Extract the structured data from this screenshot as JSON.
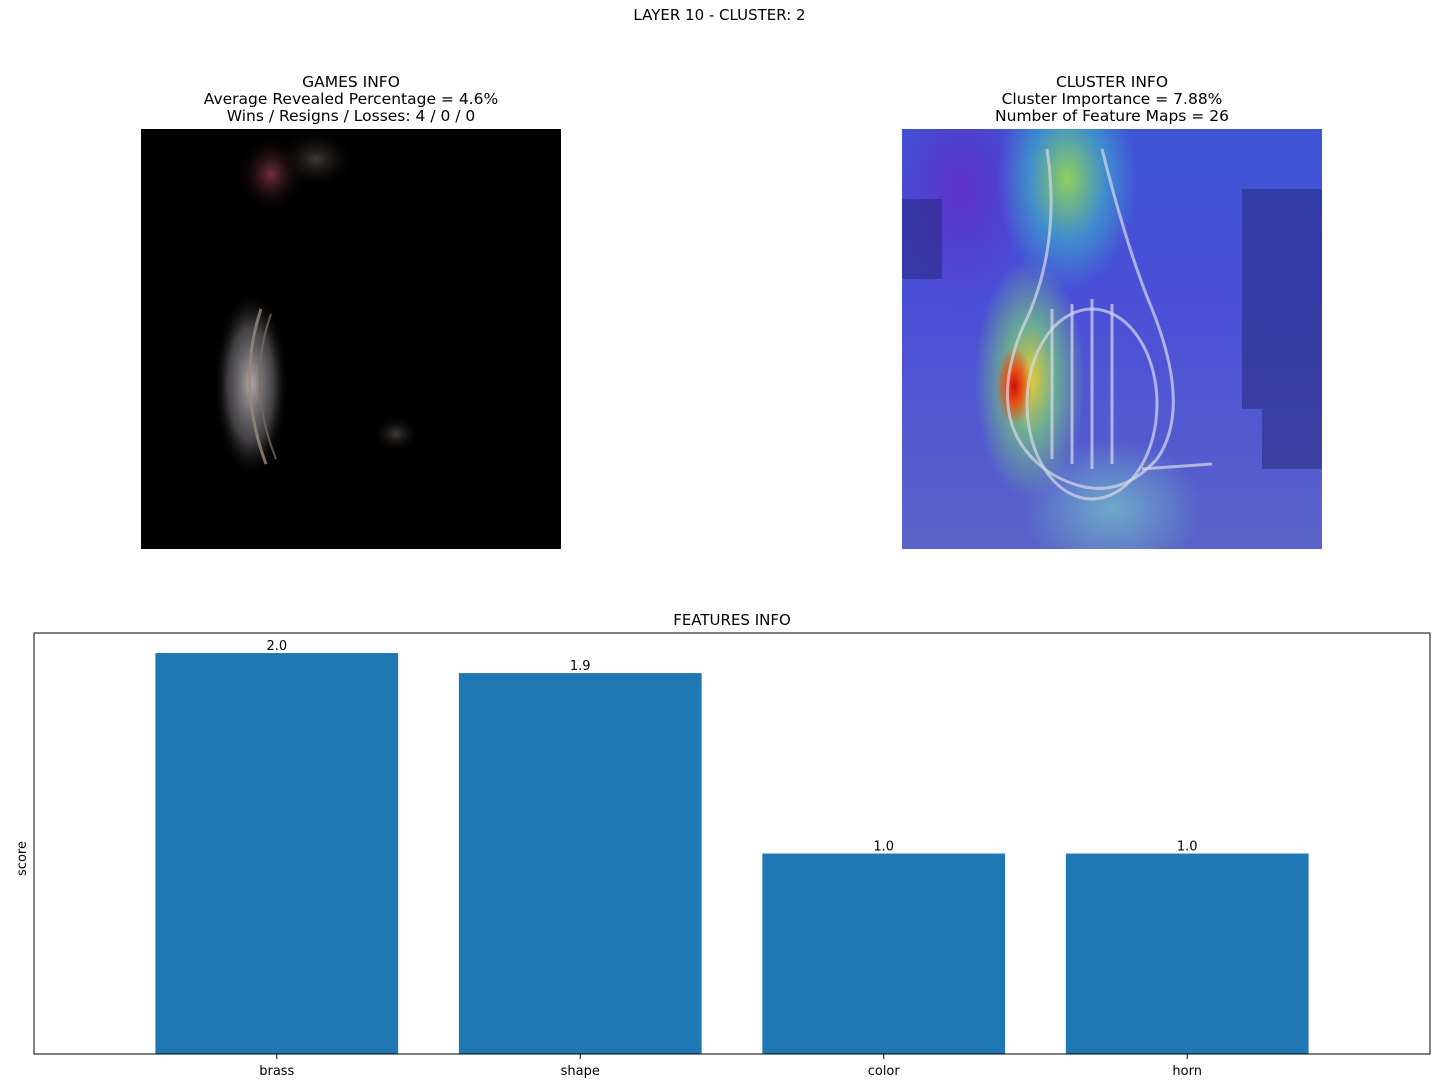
{
  "suptitle": "LAYER 10 - CLUSTER: 2",
  "games_info": {
    "title": "GAMES INFO",
    "line1": "Average Revealed Percentage = 4.6%",
    "line2": "Wins / Resigns / Losses: 4 / 0 / 0"
  },
  "cluster_info": {
    "title": "CLUSTER INFO",
    "line1": "Cluster Importance = 7.88%",
    "line2": "Number of Feature Maps = 26"
  },
  "chart_data": {
    "type": "bar",
    "title": "FEATURES INFO",
    "xlabel": "",
    "ylabel": "score",
    "categories": [
      "brass",
      "shape",
      "color",
      "horn"
    ],
    "values": [
      2.0,
      1.9,
      1.0,
      1.0
    ],
    "value_labels": [
      "2.0",
      "1.9",
      "1.0",
      "1.0"
    ],
    "ylim": [
      0,
      2.1
    ],
    "grid": false,
    "bar_color": "#1f77b4"
  }
}
